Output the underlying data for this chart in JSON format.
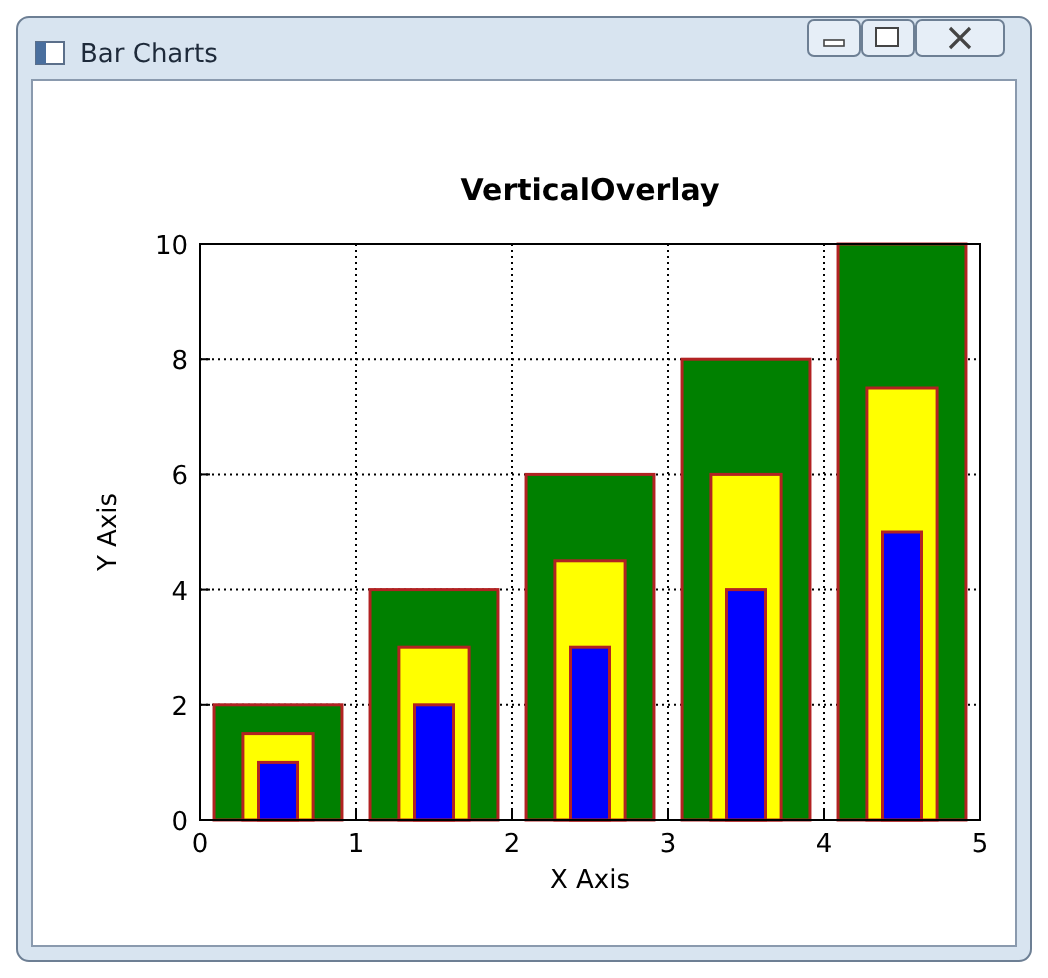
{
  "chart_data": {
    "type": "bar",
    "title": "VerticalOverlay",
    "xlabel": "X Axis",
    "ylabel": "Y Axis",
    "annotations": [
      "Bar Charts"
    ],
    "x": [
      0.5,
      1.5,
      2.5,
      3.5,
      4.5
    ],
    "series": [
      {
        "color": "#008000",
        "values": [
          2,
          4,
          6,
          8,
          10
        ]
      },
      {
        "color": "#ffff00",
        "values": [
          1.5,
          3,
          4.5,
          6,
          7.5
        ]
      },
      {
        "color": "#0000ff",
        "values": [
          1,
          2,
          3,
          4,
          5
        ]
      }
    ],
    "xlim": [
      0,
      5
    ],
    "xticks": [
      0,
      1,
      2,
      3,
      4,
      5
    ],
    "ylim": [
      0,
      10
    ],
    "yticks": [
      0,
      2,
      4,
      6,
      8,
      10
    ],
    "grid": true
  }
}
